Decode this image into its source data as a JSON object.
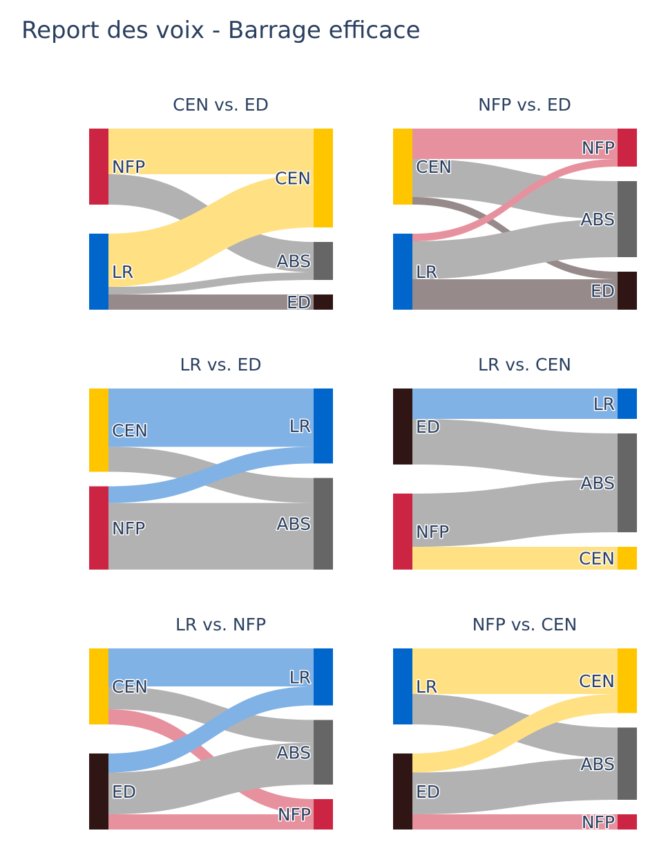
{
  "title": "Report des voix - Barrage efficace",
  "colors": {
    "NFP": "#cc2443",
    "CEN": "#ffc600",
    "LR": "#0066cc",
    "ED": "#301515",
    "ABS": "#666666"
  },
  "link_colors": {
    "NFP": "#e7919f",
    "CEN": "#ffe184",
    "LR": "#80b2e6",
    "ED": "#968a8a",
    "ABS": "#b2b2b2"
  },
  "chart_data": [
    {
      "type": "sankey",
      "title": "CEN vs. ED",
      "sources": [
        "NFP",
        "LR"
      ],
      "targets": [
        "CEN",
        "ABS",
        "ED"
      ],
      "links": [
        {
          "source": "NFP",
          "target": "CEN",
          "value": 60
        },
        {
          "source": "NFP",
          "target": "ABS",
          "value": 40
        },
        {
          "source": "LR",
          "target": "CEN",
          "value": 70
        },
        {
          "source": "LR",
          "target": "ABS",
          "value": 10
        },
        {
          "source": "LR",
          "target": "ED",
          "value": 20
        }
      ]
    },
    {
      "type": "sankey",
      "title": "NFP vs. ED",
      "sources": [
        "CEN",
        "LR"
      ],
      "targets": [
        "NFP",
        "ABS",
        "ED"
      ],
      "links": [
        {
          "source": "CEN",
          "target": "NFP",
          "value": 40
        },
        {
          "source": "CEN",
          "target": "ABS",
          "value": 50
        },
        {
          "source": "CEN",
          "target": "ED",
          "value": 10
        },
        {
          "source": "LR",
          "target": "NFP",
          "value": 10
        },
        {
          "source": "LR",
          "target": "ABS",
          "value": 50
        },
        {
          "source": "LR",
          "target": "ED",
          "value": 40
        }
      ]
    },
    {
      "type": "sankey",
      "title": "LR vs. ED",
      "sources": [
        "CEN",
        "NFP"
      ],
      "targets": [
        "LR",
        "ABS"
      ],
      "links": [
        {
          "source": "CEN",
          "target": "LR",
          "value": 70
        },
        {
          "source": "CEN",
          "target": "ABS",
          "value": 30
        },
        {
          "source": "NFP",
          "target": "LR",
          "value": 20
        },
        {
          "source": "NFP",
          "target": "ABS",
          "value": 80
        }
      ]
    },
    {
      "type": "sankey",
      "title": "LR vs. CEN",
      "sources": [
        "ED",
        "NFP"
      ],
      "targets": [
        "LR",
        "ABS",
        "CEN"
      ],
      "links": [
        {
          "source": "ED",
          "target": "LR",
          "value": 40
        },
        {
          "source": "ED",
          "target": "ABS",
          "value": 60
        },
        {
          "source": "NFP",
          "target": "ABS",
          "value": 70
        },
        {
          "source": "NFP",
          "target": "CEN",
          "value": 30
        }
      ]
    },
    {
      "type": "sankey",
      "title": "LR vs. NFP",
      "sources": [
        "CEN",
        "ED"
      ],
      "targets": [
        "LR",
        "ABS",
        "NFP"
      ],
      "links": [
        {
          "source": "CEN",
          "target": "LR",
          "value": 50
        },
        {
          "source": "CEN",
          "target": "ABS",
          "value": 30
        },
        {
          "source": "CEN",
          "target": "NFP",
          "value": 20
        },
        {
          "source": "ED",
          "target": "LR",
          "value": 25
        },
        {
          "source": "ED",
          "target": "ABS",
          "value": 55
        },
        {
          "source": "ED",
          "target": "NFP",
          "value": 20
        }
      ]
    },
    {
      "type": "sankey",
      "title": "NFP vs. CEN",
      "sources": [
        "LR",
        "ED"
      ],
      "targets": [
        "CEN",
        "ABS",
        "NFP"
      ],
      "links": [
        {
          "source": "LR",
          "target": "CEN",
          "value": 60
        },
        {
          "source": "LR",
          "target": "ABS",
          "value": 40
        },
        {
          "source": "ED",
          "target": "CEN",
          "value": 25
        },
        {
          "source": "ED",
          "target": "ABS",
          "value": 55
        },
        {
          "source": "ED",
          "target": "NFP",
          "value": 20
        }
      ]
    }
  ]
}
